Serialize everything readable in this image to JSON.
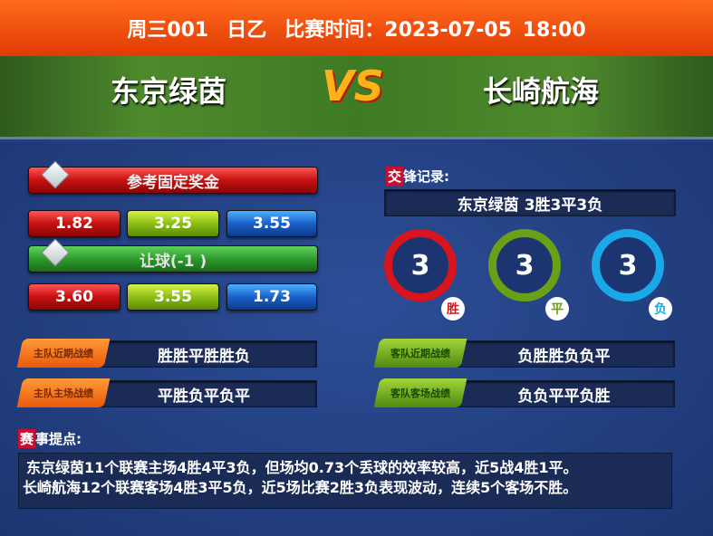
{
  "header": {
    "match_no": "周三001",
    "league": "日乙",
    "time_label": "比赛时间：2023-07-05 18:00"
  },
  "teams": {
    "home": "东京绿茵",
    "away": "长崎航海",
    "vs": "VS"
  },
  "odds": {
    "fixed_title": "参考固定奖金",
    "fixed": [
      "1.82",
      "3.25",
      "3.55"
    ],
    "handicap_title": "让球(-1 )",
    "handicap": [
      "3.60",
      "3.55",
      "1.73"
    ]
  },
  "h2h": {
    "mark": "交",
    "title": "锋记录:",
    "summary": "东京绿茵 3胜3平3负",
    "rings": [
      {
        "value": "3",
        "label": "胜",
        "color": "#d8141e"
      },
      {
        "value": "3",
        "label": "平",
        "color": "#6aa016"
      },
      {
        "value": "3",
        "label": "负",
        "color": "#19a8e8"
      }
    ]
  },
  "form": [
    {
      "tag": "主队近期战绩",
      "value": "胜胜平胜胜负"
    },
    {
      "tag": "主队主场战绩",
      "value": "平胜负平负平"
    },
    {
      "tag": "客队近期战绩",
      "value": "负胜胜负负平"
    },
    {
      "tag": "客队客场战绩",
      "value": "负负平平负胜"
    }
  ],
  "tips": {
    "mark": "赛",
    "title": "事提点:",
    "lines": [
      "东京绿茵11个联赛主场4胜4平3负，但场均0.73个丢球的效率较高，近5战4胜1平。",
      "长崎航海12个联赛客场4胜3平5负，近5场比赛2胜3负表现波动，连续5个客场不胜。"
    ]
  }
}
